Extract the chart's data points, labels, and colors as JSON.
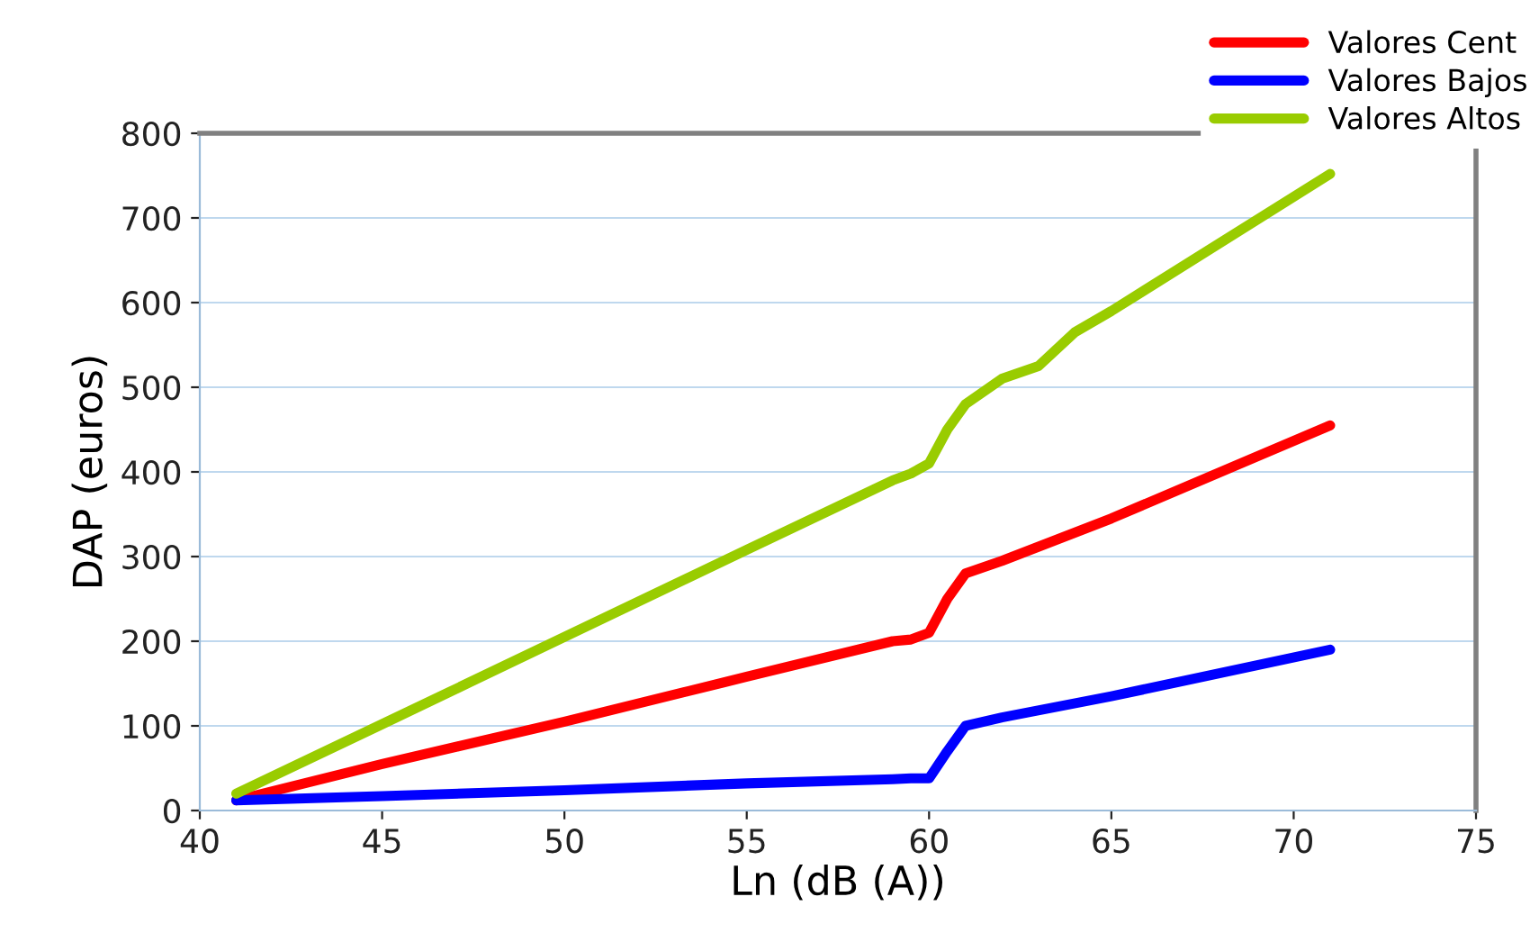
{
  "chart_data": {
    "type": "line",
    "xlabel": "Ln (dB (A))",
    "ylabel": "DAP (euros)",
    "xlim": [
      40,
      75
    ],
    "xticks": [
      40,
      45,
      50,
      55,
      60,
      65,
      70,
      75
    ],
    "ylim": [
      0,
      800
    ],
    "yticks": [
      0,
      100,
      200,
      300,
      400,
      500,
      600,
      700,
      800
    ],
    "grid": "y",
    "legend": "top right",
    "marker": "none",
    "line_style": "solid",
    "series": [
      {
        "name": "Valores Cent",
        "color": "#ff0000",
        "x": [
          41,
          45,
          50,
          55,
          59,
          59.5,
          60,
          60.5,
          61,
          62,
          65,
          71
        ],
        "values": [
          12,
          55,
          105,
          158,
          200,
          202,
          210,
          250,
          280,
          295,
          345,
          455
        ]
      },
      {
        "name": "Valores Bajos",
        "color": "#0000ff",
        "x": [
          41,
          45,
          50,
          55,
          59,
          59.5,
          60,
          60.5,
          61,
          62,
          65,
          71
        ],
        "values": [
          12,
          17,
          24,
          32,
          37,
          38,
          38,
          70,
          100,
          110,
          135,
          190
        ]
      },
      {
        "name": "Valores Altos",
        "color": "#99cc00",
        "x": [
          41,
          45,
          50,
          55,
          59,
          59.5,
          60,
          60.5,
          61,
          62,
          63,
          64,
          65,
          71
        ],
        "values": [
          20,
          102,
          205,
          308,
          390,
          398,
          410,
          450,
          480,
          510,
          525,
          565,
          590,
          752
        ]
      }
    ]
  }
}
